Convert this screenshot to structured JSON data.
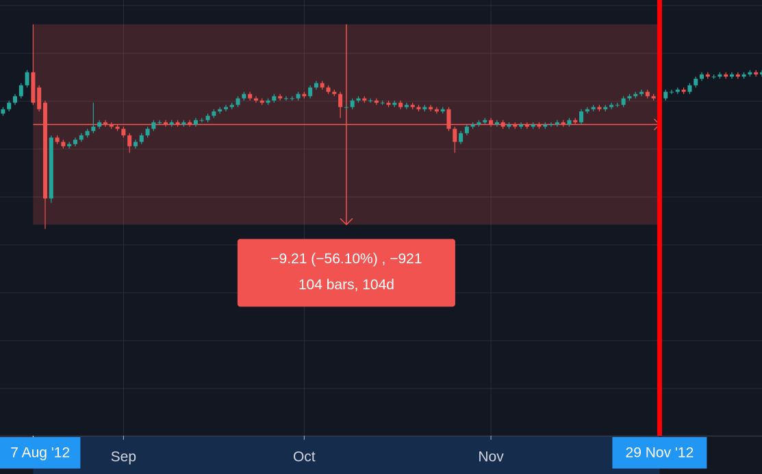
{
  "chart_data": {
    "type": "candlestick",
    "up_color": "#26a69a",
    "down_color": "#ef5350",
    "xlim": [
      -0.5,
      126
    ],
    "ylim": [
      -2.5,
      17.52
    ],
    "yticks": [
      17.27,
      15.07,
      12.87,
      10.67,
      8.47,
      6.27,
      4.07,
      1.87,
      -0.33
    ],
    "xticks": [
      {
        "value": 20,
        "label": "Sep"
      },
      {
        "value": 50,
        "label": "Oct"
      },
      {
        "value": 81,
        "label": "Nov"
      }
    ],
    "grid": true,
    "open": [
      12.3,
      12.5,
      12.8,
      13.1,
      13.6,
      14.2,
      13.5,
      12.8,
      8.4,
      11.2,
      11.0,
      10.8,
      10.9,
      11.1,
      11.3,
      11.5,
      11.7,
      11.9,
      11.8,
      11.7,
      11.6,
      11.3,
      10.8,
      11.0,
      11.3,
      11.6,
      11.9,
      11.9,
      11.8,
      11.9,
      11.8,
      11.9,
      11.8,
      12.0,
      12.0,
      12.2,
      12.4,
      12.5,
      12.6,
      12.7,
      13.0,
      13.2,
      13.0,
      12.9,
      12.8,
      12.9,
      13.1,
      13.0,
      13.0,
      13.0,
      13.2,
      13.1,
      13.5,
      13.7,
      13.5,
      13.3,
      13.2,
      12.6,
      12.6,
      12.9,
      13.0,
      12.9,
      12.9,
      12.8,
      12.8,
      12.7,
      12.8,
      12.6,
      12.7,
      12.6,
      12.5,
      12.6,
      12.5,
      12.4,
      12.5,
      11.6,
      11.0,
      11.4,
      11.7,
      11.8,
      11.9,
      12.0,
      11.8,
      11.9,
      11.7,
      11.8,
      11.7,
      11.8,
      11.7,
      11.8,
      11.7,
      11.8,
      11.8,
      11.9,
      11.8,
      12.0,
      11.9,
      12.4,
      12.5,
      12.6,
      12.5,
      12.6,
      12.7,
      12.7,
      13.0,
      13.1,
      13.2,
      13.3,
      13.1,
      13.0,
      13.0,
      13.3,
      13.3,
      13.4,
      13.3,
      13.6,
      13.9,
      14.1,
      14.0,
      14.0,
      14.1,
      14.0,
      14.1,
      14.0,
      14.1,
      14.2,
      14.1
    ],
    "high": [
      12.6,
      12.9,
      13.2,
      13.7,
      14.3,
      16.4,
      13.6,
      12.9,
      11.3,
      11.3,
      11.1,
      11.0,
      11.2,
      11.4,
      11.6,
      12.8,
      12.0,
      12.0,
      11.9,
      11.8,
      11.7,
      11.4,
      11.1,
      11.4,
      11.7,
      12.0,
      12.0,
      12.0,
      12.0,
      12.0,
      12.0,
      12.0,
      12.1,
      12.1,
      12.3,
      12.5,
      12.6,
      12.7,
      12.8,
      13.1,
      13.3,
      13.3,
      13.1,
      13.0,
      13.0,
      13.2,
      13.2,
      13.1,
      13.1,
      13.3,
      13.3,
      13.6,
      13.8,
      13.8,
      13.6,
      13.4,
      13.3,
      12.7,
      13.0,
      13.1,
      13.1,
      13.0,
      13.0,
      12.9,
      12.9,
      12.9,
      12.9,
      12.8,
      12.8,
      12.7,
      12.7,
      12.7,
      12.6,
      12.6,
      12.6,
      11.7,
      11.5,
      11.8,
      11.9,
      12.0,
      12.1,
      12.1,
      12.0,
      12.0,
      11.9,
      11.9,
      11.9,
      11.9,
      11.9,
      11.9,
      11.9,
      11.9,
      12.0,
      12.0,
      12.1,
      12.1,
      12.5,
      12.6,
      12.7,
      12.7,
      12.7,
      12.8,
      12.8,
      13.1,
      13.2,
      13.3,
      13.4,
      13.4,
      13.2,
      13.1,
      13.4,
      13.4,
      13.5,
      13.5,
      13.7,
      14.0,
      14.2,
      14.2,
      14.1,
      14.2,
      14.2,
      14.2,
      14.2,
      14.2,
      14.3,
      14.3,
      14.3
    ],
    "low": [
      12.2,
      12.4,
      12.7,
      13.0,
      13.5,
      12.7,
      12.4,
      7.0,
      8.2,
      10.9,
      10.7,
      10.7,
      10.8,
      11.0,
      11.2,
      11.4,
      11.6,
      11.7,
      11.6,
      11.5,
      11.2,
      10.5,
      10.7,
      10.9,
      11.2,
      11.5,
      11.8,
      11.7,
      11.7,
      11.7,
      11.7,
      11.7,
      11.7,
      11.9,
      11.9,
      12.1,
      12.3,
      12.4,
      12.5,
      12.6,
      12.9,
      12.9,
      12.8,
      12.7,
      12.7,
      12.8,
      12.9,
      12.9,
      12.9,
      12.9,
      13.0,
      13.0,
      13.4,
      13.4,
      13.2,
      13.1,
      12.1,
      12.5,
      12.5,
      12.8,
      12.8,
      12.8,
      12.7,
      12.7,
      12.6,
      12.6,
      12.5,
      12.5,
      12.5,
      12.4,
      12.4,
      12.4,
      12.3,
      12.3,
      11.5,
      10.5,
      10.9,
      11.3,
      11.6,
      11.7,
      11.8,
      11.7,
      11.7,
      11.6,
      11.6,
      11.6,
      11.6,
      11.6,
      11.6,
      11.6,
      11.6,
      11.7,
      11.7,
      11.7,
      11.7,
      11.8,
      11.8,
      12.3,
      12.4,
      12.4,
      12.4,
      12.5,
      12.6,
      12.6,
      12.9,
      13.0,
      13.1,
      13.0,
      12.9,
      12.9,
      12.9,
      13.2,
      13.2,
      13.2,
      13.2,
      13.5,
      13.8,
      13.9,
      13.9,
      13.9,
      13.9,
      13.9,
      13.9,
      13.9,
      14.0,
      14.0,
      14.0
    ],
    "close": [
      12.5,
      12.8,
      13.1,
      13.6,
      14.2,
      12.8,
      12.5,
      8.4,
      11.2,
      11.0,
      10.8,
      10.9,
      11.1,
      11.3,
      11.5,
      11.7,
      11.9,
      11.8,
      11.7,
      11.6,
      11.3,
      10.8,
      11.0,
      11.3,
      11.6,
      11.9,
      11.9,
      11.8,
      11.9,
      11.8,
      11.9,
      11.8,
      12.0,
      12.0,
      12.2,
      12.4,
      12.5,
      12.6,
      12.7,
      13.0,
      13.2,
      13.0,
      12.9,
      12.8,
      12.9,
      13.1,
      13.0,
      13.0,
      13.0,
      13.2,
      13.1,
      13.5,
      13.7,
      13.5,
      13.3,
      13.2,
      12.6,
      12.6,
      12.9,
      13.0,
      12.9,
      12.9,
      12.8,
      12.8,
      12.7,
      12.8,
      12.6,
      12.7,
      12.6,
      12.5,
      12.6,
      12.5,
      12.4,
      12.5,
      11.6,
      11.0,
      11.4,
      11.7,
      11.8,
      11.9,
      12.0,
      11.8,
      11.9,
      11.7,
      11.8,
      11.7,
      11.8,
      11.7,
      11.8,
      11.7,
      11.8,
      11.8,
      11.9,
      11.8,
      12.0,
      11.9,
      12.4,
      12.5,
      12.6,
      12.5,
      12.6,
      12.7,
      12.7,
      13.0,
      13.1,
      13.2,
      13.3,
      13.1,
      13.0,
      13.0,
      13.3,
      13.3,
      13.4,
      13.3,
      13.6,
      13.9,
      14.1,
      14.0,
      14.0,
      14.1,
      14.0,
      14.1,
      14.0,
      14.1,
      14.2,
      14.1,
      14.2
    ],
    "measure": {
      "start": 5,
      "end": 109,
      "from": 16.4,
      "to": 7.2,
      "color": "#f05350",
      "text": [
        "−9.21 (−56.10%) , −921",
        "104 bars, 104d"
      ]
    },
    "range_labels": [
      {
        "value": 5,
        "label": "7 Aug '12"
      },
      {
        "value": 109,
        "label": "29 Nov '12"
      }
    ],
    "cursor_color": "#ff0000"
  }
}
